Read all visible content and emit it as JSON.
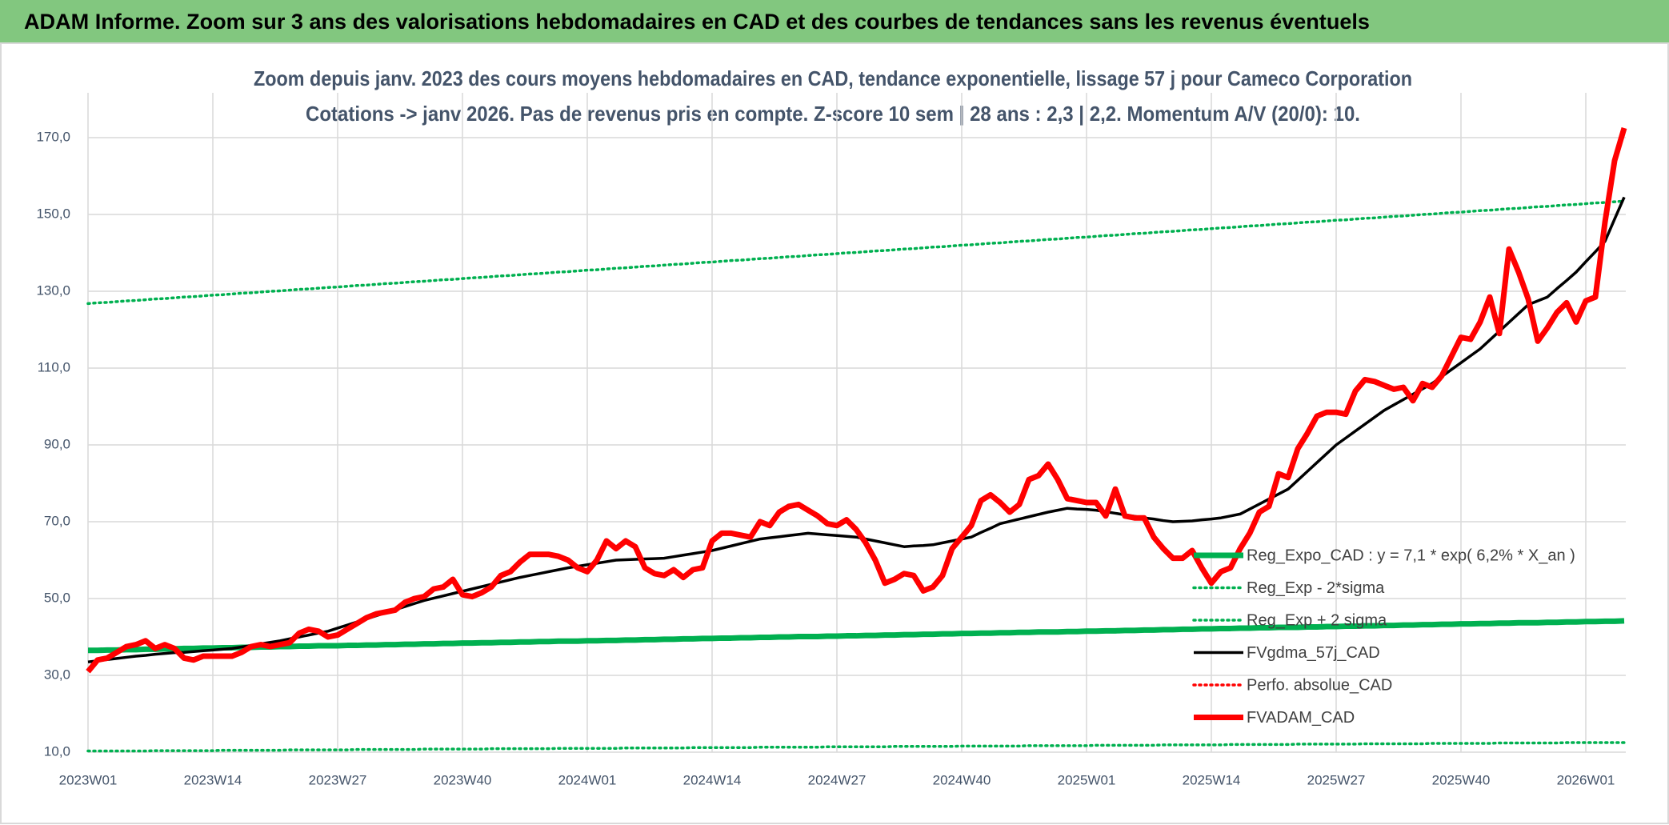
{
  "chart_data": {
    "type": "line",
    "title": "ADAM Informe. Zoom sur 3 ans des valorisations hebdomadaires en CAD et des courbes de tendances sans les revenus éventuels",
    "subtitle": [
      "Zoom depuis janv. 2023 des cours moyens hebdomadaires en CAD, tendance exponentielle, lissage 57 j pour Cameco Corporation",
      "Cotations -> janv 2026. Pas de revenus pris en compte. Z-score 10 sem | 28 ans : 2,3 | 2,2. Momentum A/V (20/0): 10."
    ],
    "categories": [
      "2023W01",
      null,
      null,
      null,
      null,
      null,
      null,
      null,
      null,
      null,
      null,
      null,
      null,
      "2023W14",
      null,
      null,
      null,
      null,
      null,
      null,
      null,
      null,
      null,
      null,
      null,
      null,
      "2023W27",
      null,
      null,
      null,
      null,
      null,
      null,
      null,
      null,
      null,
      null,
      null,
      null,
      "2023W40",
      null,
      null,
      null,
      null,
      null,
      null,
      null,
      null,
      null,
      null,
      null,
      null,
      "2024W01",
      null,
      null,
      null,
      null,
      null,
      null,
      null,
      null,
      null,
      null,
      null,
      null,
      "2024W14",
      null,
      null,
      null,
      null,
      null,
      null,
      null,
      null,
      null,
      null,
      null,
      null,
      "2024W27",
      null,
      null,
      null,
      null,
      null,
      null,
      null,
      null,
      null,
      null,
      null,
      null,
      "2024W40",
      null,
      null,
      null,
      null,
      null,
      null,
      null,
      null,
      null,
      null,
      null,
      null,
      "2025W01",
      null,
      null,
      null,
      null,
      null,
      null,
      null,
      null,
      null,
      null,
      null,
      null,
      "2025W14",
      null,
      null,
      null,
      null,
      null,
      null,
      null,
      null,
      null,
      null,
      null,
      null,
      "2025W27",
      null,
      null,
      null,
      null,
      null,
      null,
      null,
      null,
      null,
      null,
      null,
      null,
      "2025W40",
      null,
      null,
      null,
      null,
      null,
      null,
      null,
      null,
      null,
      null,
      null,
      null,
      "2026W01",
      null,
      null,
      null,
      null
    ],
    "ylim": [
      10,
      180
    ],
    "yticks": [
      {
        "value": 10,
        "label": "10,0"
      },
      {
        "value": 30,
        "label": "30,0"
      },
      {
        "value": 50,
        "label": "50,0"
      },
      {
        "value": 70,
        "label": "70,0"
      },
      {
        "value": 90,
        "label": "90,0"
      },
      {
        "value": 110,
        "label": "110,0"
      },
      {
        "value": 130,
        "label": "130,0"
      },
      {
        "value": 150,
        "label": "150,0"
      },
      {
        "value": 170,
        "label": "170,0"
      }
    ],
    "grid": true,
    "legend": "right",
    "series": [
      {
        "name": "Reg_Expo_CAD : y = 7,1 * exp( 6,2% *  X_an )",
        "color": "#00b050",
        "style": "thick",
        "values": [
          36.5,
          36.5,
          36.6,
          36.6,
          36.7,
          36.7,
          36.8,
          36.8,
          36.9,
          36.9,
          37.0,
          37.0,
          37.1,
          37.1,
          37.2,
          37.2,
          37.3,
          37.3,
          37.4,
          37.4,
          37.5,
          37.5,
          37.6,
          37.6,
          37.7,
          37.7,
          37.7,
          37.8,
          37.8,
          37.9,
          37.9,
          38.0,
          38.0,
          38.1,
          38.1,
          38.2,
          38.2,
          38.3,
          38.3,
          38.4,
          38.4,
          38.5,
          38.5,
          38.6,
          38.6,
          38.7,
          38.7,
          38.8,
          38.8,
          38.9,
          38.9,
          38.9,
          39.0,
          39.0,
          39.1,
          39.1,
          39.2,
          39.2,
          39.3,
          39.3,
          39.4,
          39.4,
          39.5,
          39.5,
          39.6,
          39.6,
          39.7,
          39.7,
          39.8,
          39.8,
          39.9,
          39.9,
          40.0,
          40.0,
          40.1,
          40.1,
          40.1,
          40.2,
          40.2,
          40.3,
          40.3,
          40.4,
          40.4,
          40.5,
          40.5,
          40.6,
          40.6,
          40.7,
          40.7,
          40.8,
          40.8,
          40.9,
          40.9,
          41.0,
          41.0,
          41.1,
          41.1,
          41.2,
          41.2,
          41.3,
          41.3,
          41.3,
          41.4,
          41.4,
          41.5,
          41.5,
          41.6,
          41.6,
          41.7,
          41.7,
          41.8,
          41.8,
          41.9,
          41.9,
          42.0,
          42.0,
          42.1,
          42.1,
          42.2,
          42.2,
          42.3,
          42.3,
          42.4,
          42.4,
          42.5,
          42.5,
          42.5,
          42.6,
          42.6,
          42.7,
          42.7,
          42.8,
          42.8,
          42.9,
          42.9,
          43.0,
          43.0,
          43.1,
          43.1,
          43.2,
          43.2,
          43.3,
          43.3,
          43.4,
          43.4,
          43.5,
          43.5,
          43.6,
          43.6,
          43.7,
          43.7,
          43.7,
          43.8,
          43.8,
          43.9,
          43.9,
          44.0,
          44.0,
          44.1,
          44.1,
          44.2
        ]
      },
      {
        "name": "Reg_Exp - 2*sigma",
        "color": "#00b050",
        "style": "dotted",
        "values": [
          10.3,
          10.3,
          10.3,
          10.3,
          10.3,
          10.3,
          10.3,
          10.4,
          10.4,
          10.4,
          10.4,
          10.4,
          10.4,
          10.4,
          10.5,
          10.5,
          10.5,
          10.5,
          10.5,
          10.5,
          10.5,
          10.6,
          10.6,
          10.6,
          10.6,
          10.6,
          10.6,
          10.6,
          10.7,
          10.7,
          10.7,
          10.7,
          10.7,
          10.7,
          10.7,
          10.8,
          10.8,
          10.8,
          10.8,
          10.8,
          10.8,
          10.8,
          10.9,
          10.9,
          10.9,
          10.9,
          10.9,
          10.9,
          10.9,
          11.0,
          11.0,
          11.0,
          11.0,
          11.0,
          11.0,
          11.0,
          11.1,
          11.1,
          11.1,
          11.1,
          11.1,
          11.1,
          11.1,
          11.2,
          11.2,
          11.2,
          11.2,
          11.2,
          11.2,
          11.2,
          11.3,
          11.3,
          11.3,
          11.3,
          11.3,
          11.3,
          11.3,
          11.4,
          11.4,
          11.4,
          11.4,
          11.4,
          11.4,
          11.4,
          11.5,
          11.5,
          11.5,
          11.5,
          11.5,
          11.5,
          11.5,
          11.6,
          11.6,
          11.6,
          11.6,
          11.6,
          11.6,
          11.6,
          11.7,
          11.7,
          11.7,
          11.7,
          11.7,
          11.7,
          11.7,
          11.8,
          11.8,
          11.8,
          11.8,
          11.8,
          11.8,
          11.8,
          11.9,
          11.9,
          11.9,
          11.9,
          11.9,
          11.9,
          11.9,
          12.0,
          12.0,
          12.0,
          12.0,
          12.0,
          12.0,
          12.0,
          12.1,
          12.1,
          12.1,
          12.1,
          12.1,
          12.1,
          12.1,
          12.2,
          12.2,
          12.2,
          12.2,
          12.2,
          12.2,
          12.2,
          12.3,
          12.3,
          12.3,
          12.3,
          12.3,
          12.3,
          12.3,
          12.4,
          12.4,
          12.4,
          12.4,
          12.4,
          12.4,
          12.4,
          12.5,
          12.5,
          12.5,
          12.5,
          12.5,
          12.5,
          12.5
        ]
      },
      {
        "name": "Reg_Exp + 2 sigma",
        "color": "#00b050",
        "style": "dotted",
        "values": [
          126.8,
          127.0,
          127.1,
          127.3,
          127.5,
          127.6,
          127.8,
          128.0,
          128.1,
          128.3,
          128.5,
          128.6,
          128.8,
          129.0,
          129.1,
          129.3,
          129.5,
          129.6,
          129.8,
          130.0,
          130.1,
          130.3,
          130.5,
          130.6,
          130.8,
          131.0,
          131.1,
          131.3,
          131.5,
          131.6,
          131.8,
          132.0,
          132.1,
          132.3,
          132.5,
          132.6,
          132.8,
          133.0,
          133.1,
          133.3,
          133.5,
          133.6,
          133.8,
          134.0,
          134.1,
          134.3,
          134.5,
          134.6,
          134.8,
          135.0,
          135.1,
          135.3,
          135.5,
          135.6,
          135.8,
          136.0,
          136.1,
          136.3,
          136.5,
          136.6,
          136.8,
          137.0,
          137.1,
          137.3,
          137.5,
          137.6,
          137.8,
          138.0,
          138.1,
          138.3,
          138.5,
          138.6,
          138.8,
          139.0,
          139.1,
          139.3,
          139.5,
          139.6,
          139.8,
          140.0,
          140.1,
          140.3,
          140.5,
          140.6,
          140.8,
          141.0,
          141.1,
          141.3,
          141.5,
          141.6,
          141.8,
          142.0,
          142.1,
          142.3,
          142.5,
          142.6,
          142.8,
          143.0,
          143.1,
          143.3,
          143.5,
          143.6,
          143.8,
          144.0,
          144.1,
          144.3,
          144.5,
          144.6,
          144.8,
          145.0,
          145.1,
          145.3,
          145.5,
          145.6,
          145.8,
          146.0,
          146.1,
          146.3,
          146.5,
          146.6,
          146.8,
          147.0,
          147.1,
          147.3,
          147.5,
          147.6,
          147.8,
          148.0,
          148.1,
          148.3,
          148.5,
          148.6,
          148.8,
          149.0,
          149.1,
          149.3,
          149.5,
          149.6,
          149.8,
          150.0,
          150.1,
          150.3,
          150.5,
          150.6,
          150.8,
          151.0,
          151.1,
          151.3,
          151.5,
          151.6,
          151.8,
          152.0,
          152.1,
          152.3,
          152.5,
          152.6,
          152.8,
          153.0,
          153.1,
          153.3,
          153.5
        ]
      },
      {
        "name": "FVgdma_57j_CAD",
        "color": "#000000",
        "style": "solid",
        "values": [
          33.5,
          33.8,
          34.1,
          34.4,
          34.7,
          35,
          35.2,
          35.5,
          35.7,
          35.9,
          36,
          36.2,
          36.4,
          36.6,
          36.8,
          37,
          37.4,
          37.8,
          38.2,
          38.6,
          39,
          39.5,
          40,
          40.5,
          41,
          41.5,
          42.3,
          43.1,
          43.9,
          44.7,
          45.5,
          46.3,
          47.1,
          47.9,
          48.7,
          49.5,
          50.1,
          50.7,
          51.3,
          51.9,
          52.5,
          53.1,
          53.7,
          54.3,
          54.9,
          55.5,
          56,
          56.5,
          57,
          57.5,
          58,
          58.4,
          58.8,
          59.2,
          59.6,
          60,
          60.1,
          60.2,
          60.3,
          60.4,
          60.5,
          60.9,
          61.3,
          61.7,
          62.1,
          62.5,
          63.1,
          63.7,
          64.3,
          64.9,
          65.5,
          65.8,
          66.1,
          66.4,
          66.7,
          67,
          66.8,
          66.6,
          66.4,
          66.2,
          66,
          65.5,
          65,
          64.5,
          64,
          63.5,
          63.7,
          63.8,
          64,
          64.5,
          65,
          65.5,
          66,
          67.2,
          68.3,
          69.5,
          70.1,
          70.7,
          71.3,
          71.9,
          72.5,
          73,
          73.5,
          73.3,
          73.2,
          73,
          72.6,
          72.2,
          71.8,
          71.4,
          71,
          70.7,
          70.3,
          70,
          70.1,
          70.2,
          70.5,
          70.7,
          71,
          71.5,
          72,
          73.3,
          74.6,
          75.9,
          77.2,
          78.5,
          80.8,
          83.1,
          85.4,
          87.7,
          90,
          91.8,
          93.6,
          95.4,
          97.2,
          99,
          100.4,
          101.8,
          103.2,
          104.6,
          106,
          107.8,
          109.6,
          111.4,
          113.2,
          115,
          117.3,
          119.6,
          121.9,
          124.2,
          126.5,
          127.5,
          128.5,
          130.7,
          132.8,
          135,
          137.7,
          140.3,
          143,
          148.8,
          154.5
        ]
      },
      {
        "name": "Perfo. absolue_CAD",
        "color": "#ff0000",
        "style": "dotted",
        "values": [
          null,
          null,
          null,
          null,
          null,
          null,
          null,
          null,
          null,
          null,
          null,
          null,
          null,
          null,
          null,
          null,
          null,
          null,
          null,
          null,
          null,
          null,
          null,
          null,
          null,
          null,
          null,
          null,
          null,
          null,
          null,
          null,
          null,
          null,
          null,
          null,
          null,
          null,
          null,
          null,
          null,
          null,
          null,
          null,
          null,
          null,
          null,
          null,
          null,
          null,
          null,
          null,
          null,
          null,
          null,
          null,
          null,
          null,
          null,
          null,
          null,
          null,
          null,
          null,
          null,
          null,
          null,
          null,
          null,
          null,
          null,
          null,
          null,
          null,
          null,
          null,
          null,
          null,
          null,
          null,
          null,
          null,
          null,
          null,
          null,
          null,
          null,
          null,
          null,
          null,
          null,
          null,
          null,
          null,
          null,
          null,
          null,
          null,
          null,
          null,
          null,
          null,
          null,
          null,
          null,
          null,
          null,
          null,
          null,
          null,
          null,
          null,
          null,
          null,
          null,
          null,
          null,
          null,
          null,
          null,
          null,
          null,
          null,
          null,
          null,
          null,
          null,
          null,
          null,
          null,
          null,
          null,
          null,
          null,
          null,
          null,
          null,
          null,
          null,
          null,
          null,
          null,
          null,
          null,
          null,
          null,
          null,
          null,
          null,
          null,
          null,
          null,
          null,
          null,
          null,
          null,
          null,
          null,
          null,
          null,
          null
        ]
      },
      {
        "name": "FVADAM_CAD",
        "color": "#ff0000",
        "style": "thick",
        "values": [
          31,
          34,
          34.5,
          36,
          37.5,
          38,
          39,
          37,
          38,
          37,
          34.5,
          34,
          35,
          35,
          35,
          35,
          36,
          37.5,
          38,
          37.5,
          38,
          38.5,
          41,
          42,
          41.5,
          40,
          40.5,
          42,
          43.5,
          45,
          46,
          46.5,
          47,
          49,
          50,
          50.5,
          52.5,
          53,
          55,
          51,
          50.5,
          51.5,
          53,
          56,
          57,
          59.5,
          61.5,
          61.5,
          61.5,
          61,
          60,
          58,
          57,
          60,
          65,
          63,
          65,
          63.5,
          58,
          56.5,
          56,
          57.5,
          55.5,
          57.5,
          58,
          65,
          67,
          67,
          66.5,
          66,
          70,
          69,
          72.5,
          74,
          74.5,
          73,
          71.5,
          69.5,
          69,
          70.5,
          68,
          64.5,
          60,
          54,
          55,
          56.5,
          56,
          52,
          53,
          56,
          63,
          66,
          69,
          75.5,
          77,
          75,
          72.5,
          74.5,
          81,
          82,
          85,
          81,
          76,
          75.5,
          75,
          75,
          71.5,
          78.5,
          71.5,
          71,
          71,
          66,
          63,
          60.5,
          60.5,
          62.5,
          58,
          54,
          57,
          58,
          63,
          67,
          72.5,
          74,
          82.5,
          81.5,
          89,
          93,
          97.5,
          98.5,
          98.5,
          98,
          104,
          107,
          106.5,
          105.5,
          104.5,
          105,
          101.5,
          106,
          105,
          108,
          113,
          118,
          117.5,
          122,
          128.5,
          119,
          141,
          135,
          128,
          117,
          120.5,
          124.5,
          127,
          122,
          127.5,
          128.5,
          148,
          164,
          172.5
        ]
      }
    ]
  }
}
